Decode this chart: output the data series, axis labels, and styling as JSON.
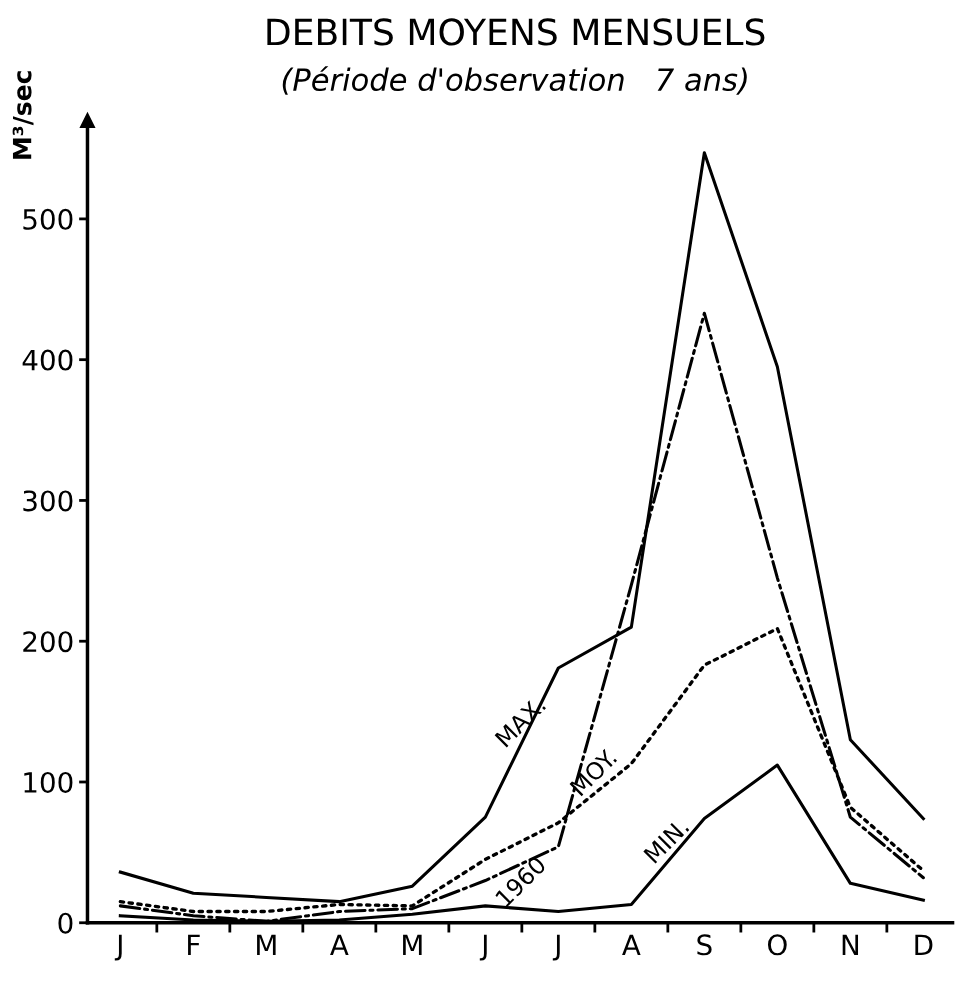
{
  "chart_data": {
    "type": "line",
    "title": "DEBITS MOYENS MENSUELS",
    "subtitle": "(Période d'observation   7 ans)",
    "ylabel": "M³/sec",
    "categories": [
      "J",
      "F",
      "M",
      "A",
      "M",
      "J",
      "J",
      "A",
      "S",
      "O",
      "N",
      "D"
    ],
    "series": [
      {
        "name": "MAX.",
        "color": "#000000",
        "line_style": "solid",
        "values": [
          36,
          21,
          18,
          15,
          26,
          75,
          181,
          210,
          547,
          395,
          130,
          74
        ]
      },
      {
        "name": "1960",
        "color": "#000000",
        "line_style": "dashdot",
        "values": [
          12,
          5,
          1,
          8,
          10,
          30,
          54,
          240,
          433,
          245,
          75,
          32
        ]
      },
      {
        "name": "MOY.",
        "color": "#000000",
        "line_style": "dotted",
        "values": [
          15,
          8,
          8,
          13,
          12,
          45,
          71,
          113,
          183,
          209,
          82,
          37
        ]
      },
      {
        "name": "MIN.",
        "color": "#000000",
        "line_style": "solid",
        "values": [
          5,
          2,
          1,
          2,
          6,
          12,
          8,
          13,
          74,
          112,
          28,
          16
        ]
      }
    ],
    "ylim": [
      0,
      570
    ],
    "yticks": [
      0,
      100,
      200,
      300,
      400,
      500
    ],
    "grid": false,
    "legend": false,
    "marker": "none"
  }
}
